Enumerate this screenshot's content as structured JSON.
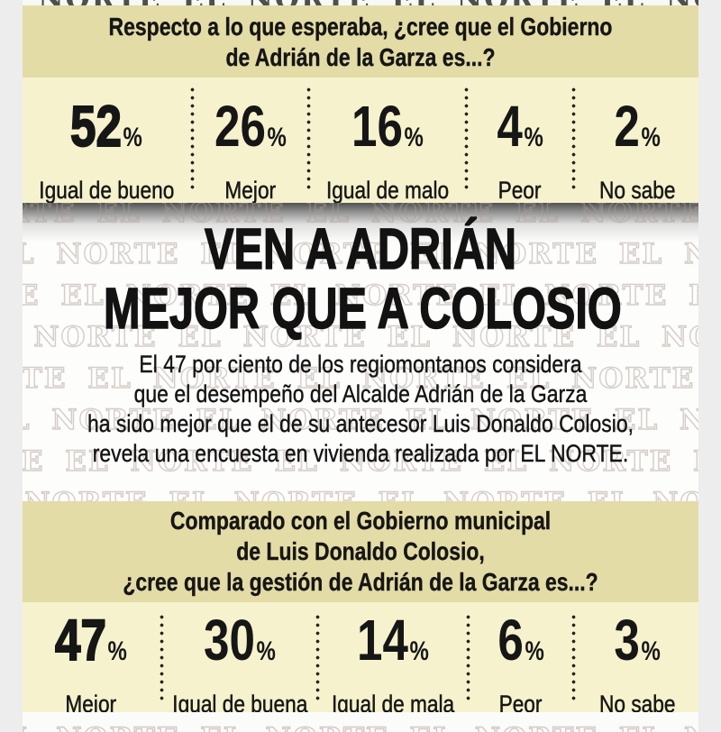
{
  "colors": {
    "banner_tan": "#e4dca7",
    "stats_cream": "#f5f2cd",
    "page_margin_gray": "#ededed",
    "ink": "#161616",
    "top_shadow": "#4e4e4e",
    "watermark_outline": "#ac9e96"
  },
  "watermark": {
    "brand": "EL NORTE",
    "row_text": "EL NORTE   EL NORTE   EL NORTE   EL NORTE   EL NORTE   EL NORTE"
  },
  "question1": {
    "lines": [
      "Respecto a lo que esperaba, ¿cree que el Gobierno",
      "de Adrián de la Garza es...?"
    ]
  },
  "stats1": [
    {
      "value": "52",
      "unit": "%",
      "label": "Igual de bueno"
    },
    {
      "value": "26",
      "unit": "%",
      "label": "Mejor"
    },
    {
      "value": "16",
      "unit": "%",
      "label": "Igual de malo"
    },
    {
      "value": "4",
      "unit": "%",
      "label": "Peor"
    },
    {
      "value": "2",
      "unit": "%",
      "label": "No sabe"
    }
  ],
  "headline": {
    "lines": [
      "VEN A ADRIÁN",
      "MEJOR QUE A COLOSIO"
    ]
  },
  "body": {
    "lines": [
      "El 47 por ciento de los regiomontanos considera",
      "que el desempeño del Alcalde Adrián de la Garza",
      "ha sido mejor que el de su antecesor Luis Donaldo Colosio,",
      "revela una encuesta en vivienda realizada por EL NORTE."
    ]
  },
  "question2": {
    "lines": [
      "Comparado con el Gobierno municipal",
      "de Luis Donaldo Colosio,",
      "¿cree que la gestión de Adrián de la Garza es...?"
    ]
  },
  "stats2": [
    {
      "value": "47",
      "unit": "%",
      "label": "Mejor"
    },
    {
      "value": "30",
      "unit": "%",
      "label": "Igual de buena"
    },
    {
      "value": "14",
      "unit": "%",
      "label": "Igual de mala"
    },
    {
      "value": "6",
      "unit": "%",
      "label": "Peor"
    },
    {
      "value": "3",
      "unit": "%",
      "label": "No sabe"
    }
  ],
  "chart_data": [
    {
      "type": "bar",
      "title": "Respecto a lo que esperaba, ¿cree que el Gobierno de Adrián de la Garza es...?",
      "categories": [
        "Igual de bueno",
        "Mejor",
        "Igual de malo",
        "Peor",
        "No sabe"
      ],
      "values": [
        52,
        26,
        16,
        4,
        2
      ],
      "unit": "%",
      "xlabel": "",
      "ylabel": "",
      "ylim": [
        0,
        100
      ],
      "layout": "percentage callouts in a row, dotted separators"
    },
    {
      "type": "bar",
      "title": "Comparado con el Gobierno municipal de Luis Donaldo Colosio, ¿cree que la gestión de Adrián de la Garza es...?",
      "categories": [
        "Mejor",
        "Igual de buena",
        "Igual de mala",
        "Peor",
        "No sabe"
      ],
      "values": [
        47,
        30,
        14,
        6,
        3
      ],
      "unit": "%",
      "xlabel": "",
      "ylabel": "",
      "ylim": [
        0,
        100
      ],
      "layout": "percentage callouts in a row, dotted separators"
    }
  ]
}
